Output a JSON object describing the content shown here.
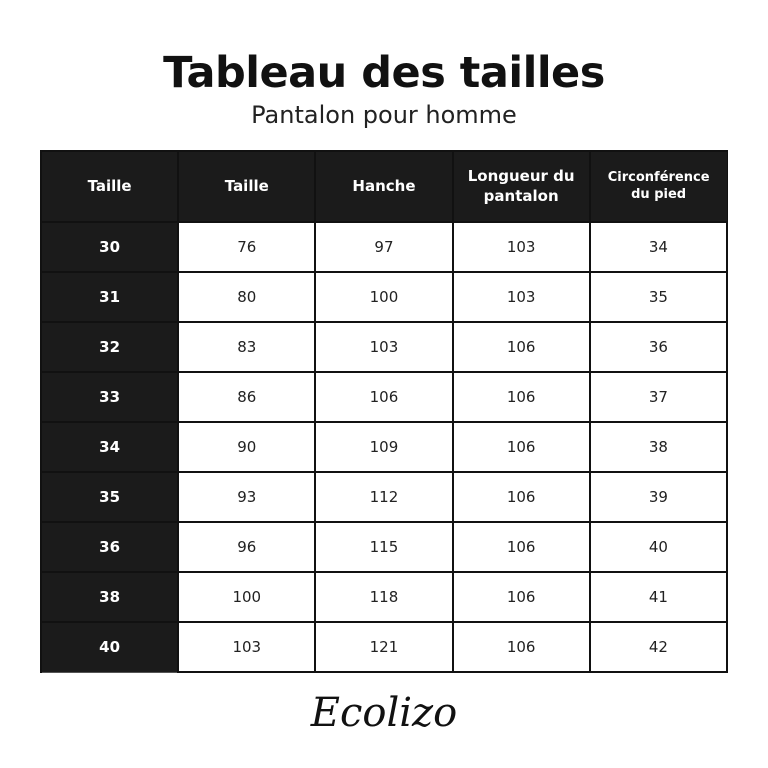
{
  "title": "Tableau des tailles",
  "subtitle": "Pantalon pour homme",
  "table": {
    "headers": [
      "Taille",
      "Taille",
      "Hanche",
      "Longueur du pantalon",
      "Circonférence du pied"
    ],
    "rows": [
      [
        "30",
        "76",
        "97",
        "103",
        "34"
      ],
      [
        "31",
        "80",
        "100",
        "103",
        "35"
      ],
      [
        "32",
        "83",
        "103",
        "106",
        "36"
      ],
      [
        "33",
        "86",
        "106",
        "106",
        "37"
      ],
      [
        "34",
        "90",
        "109",
        "106",
        "38"
      ],
      [
        "35",
        "93",
        "112",
        "106",
        "39"
      ],
      [
        "36",
        "96",
        "115",
        "106",
        "40"
      ],
      [
        "38",
        "100",
        "118",
        "106",
        "41"
      ],
      [
        "40",
        "103",
        "121",
        "106",
        "42"
      ]
    ]
  },
  "logo": "Ecolizo",
  "colors": {
    "header_bg": "#1b1b1b",
    "text": "#111111"
  }
}
